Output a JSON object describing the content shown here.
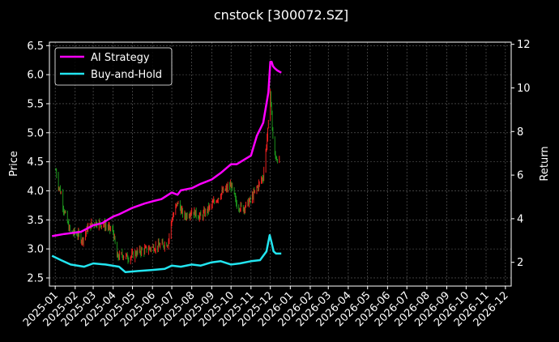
{
  "chart_data": {
    "type": "line",
    "title": "cnstock [300072.SZ]",
    "ylabel_left": "Price",
    "ylabel_right": "Return",
    "grid": true,
    "legend_position": "top-left",
    "ylim_left": [
      2.36,
      6.56
    ],
    "ylim_right": [
      0.91,
      12.1
    ],
    "yticks_left": [
      2.5,
      3.0,
      3.5,
      4.0,
      4.5,
      5.0,
      5.5,
      6.0,
      6.5
    ],
    "yticks_left_labels": [
      "2.5",
      "3.0",
      "3.5",
      "4.0",
      "4.5",
      "5.0",
      "5.5",
      "6.0",
      "6.5"
    ],
    "yticks_right": [
      2,
      4,
      6,
      8,
      10,
      12
    ],
    "yticks_right_labels": [
      "2",
      "4",
      "6",
      "8",
      "10",
      "12"
    ],
    "xlim": [
      "2024-12-23",
      "2026-12-10"
    ],
    "xticks": [
      "2025-01",
      "2025-02",
      "2025-03",
      "2025-04",
      "2025-05",
      "2025-06",
      "2025-07",
      "2025-08",
      "2025-09",
      "2025-10",
      "2025-11",
      "2025-12",
      "2026-01",
      "2026-02",
      "2026-03",
      "2026-04",
      "2026-05",
      "2026-06",
      "2026-07",
      "2026-08",
      "2026-09",
      "2026-10",
      "2026-11",
      "2026-12"
    ],
    "xtick_dates": [
      "2025-01-01",
      "2025-02-01",
      "2025-03-01",
      "2025-04-01",
      "2025-05-01",
      "2025-06-01",
      "2025-07-01",
      "2025-08-01",
      "2025-09-01",
      "2025-10-01",
      "2025-11-01",
      "2025-12-01",
      "2026-01-01",
      "2026-02-01",
      "2026-03-01",
      "2026-04-01",
      "2026-05-01",
      "2026-06-01",
      "2026-07-01",
      "2026-08-01",
      "2026-09-01",
      "2026-10-01",
      "2026-11-01",
      "2026-12-01"
    ],
    "price_close": {
      "x": [
        "2025-01-02",
        "2025-01-06",
        "2025-01-10",
        "2025-01-14",
        "2025-01-20",
        "2025-01-24",
        "2025-02-05",
        "2025-02-12",
        "2025-02-20",
        "2025-03-01",
        "2025-03-10",
        "2025-03-20",
        "2025-04-01",
        "2025-04-07",
        "2025-04-15",
        "2025-04-25",
        "2025-05-10",
        "2025-05-25",
        "2025-06-10",
        "2025-06-25",
        "2025-07-01",
        "2025-07-10",
        "2025-07-20",
        "2025-08-01",
        "2025-08-15",
        "2025-09-01",
        "2025-09-15",
        "2025-10-01",
        "2025-10-10",
        "2025-10-20",
        "2025-11-01",
        "2025-11-10",
        "2025-11-20",
        "2025-11-25",
        "2025-11-28",
        "2025-12-01",
        "2025-12-03",
        "2025-12-05",
        "2025-12-08",
        "2025-12-12",
        "2025-12-16"
      ],
      "values": [
        4.35,
        4.1,
        3.95,
        3.7,
        3.45,
        3.3,
        3.25,
        3.15,
        3.35,
        3.45,
        3.45,
        3.4,
        3.3,
        2.85,
        2.9,
        2.85,
        2.95,
        3.0,
        3.05,
        3.1,
        3.5,
        3.8,
        3.55,
        3.65,
        3.55,
        3.75,
        3.95,
        4.1,
        3.75,
        3.7,
        3.85,
        4.05,
        4.25,
        4.8,
        5.15,
        5.75,
        5.3,
        4.9,
        4.6,
        4.55,
        4.5
      ]
    },
    "series": [
      {
        "name": "AI Strategy",
        "color": "#ff00ff",
        "axis": "right",
        "x": [
          "2024-12-27",
          "2025-01-15",
          "2025-02-10",
          "2025-03-01",
          "2025-03-15",
          "2025-04-01",
          "2025-04-10",
          "2025-05-01",
          "2025-05-20",
          "2025-06-01",
          "2025-06-15",
          "2025-07-01",
          "2025-07-10",
          "2025-07-15",
          "2025-08-01",
          "2025-08-15",
          "2025-09-01",
          "2025-09-15",
          "2025-10-01",
          "2025-10-10",
          "2025-11-01",
          "2025-11-10",
          "2025-11-20",
          "2025-11-28",
          "2025-12-01",
          "2025-12-03",
          "2025-12-05",
          "2025-12-08",
          "2025-12-12",
          "2025-12-18"
        ],
        "values": [
          3.2,
          3.3,
          3.4,
          3.7,
          3.8,
          4.1,
          4.2,
          4.5,
          4.7,
          4.8,
          4.9,
          5.2,
          5.1,
          5.3,
          5.4,
          5.6,
          5.8,
          6.1,
          6.5,
          6.5,
          6.9,
          7.8,
          8.4,
          9.8,
          11.2,
          11.2,
          11.0,
          10.9,
          10.8,
          10.7
        ]
      },
      {
        "name": "Buy-and-Hold",
        "color": "#22e5f0",
        "axis": "right",
        "x": [
          "2024-12-27",
          "2025-01-10",
          "2025-01-25",
          "2025-02-15",
          "2025-03-01",
          "2025-03-20",
          "2025-04-10",
          "2025-04-20",
          "2025-05-10",
          "2025-06-01",
          "2025-06-20",
          "2025-07-01",
          "2025-07-15",
          "2025-08-01",
          "2025-08-15",
          "2025-09-01",
          "2025-09-15",
          "2025-10-01",
          "2025-10-15",
          "2025-11-01",
          "2025-11-15",
          "2025-11-25",
          "2025-11-30",
          "2025-12-03",
          "2025-12-06",
          "2025-12-10",
          "2025-12-18"
        ],
        "values": [
          2.3,
          2.1,
          1.9,
          1.8,
          1.95,
          1.9,
          1.8,
          1.55,
          1.6,
          1.65,
          1.7,
          1.85,
          1.8,
          1.9,
          1.85,
          2.0,
          2.05,
          1.9,
          1.95,
          2.05,
          2.1,
          2.5,
          3.25,
          2.9,
          2.5,
          2.4,
          2.4
        ]
      }
    ]
  }
}
